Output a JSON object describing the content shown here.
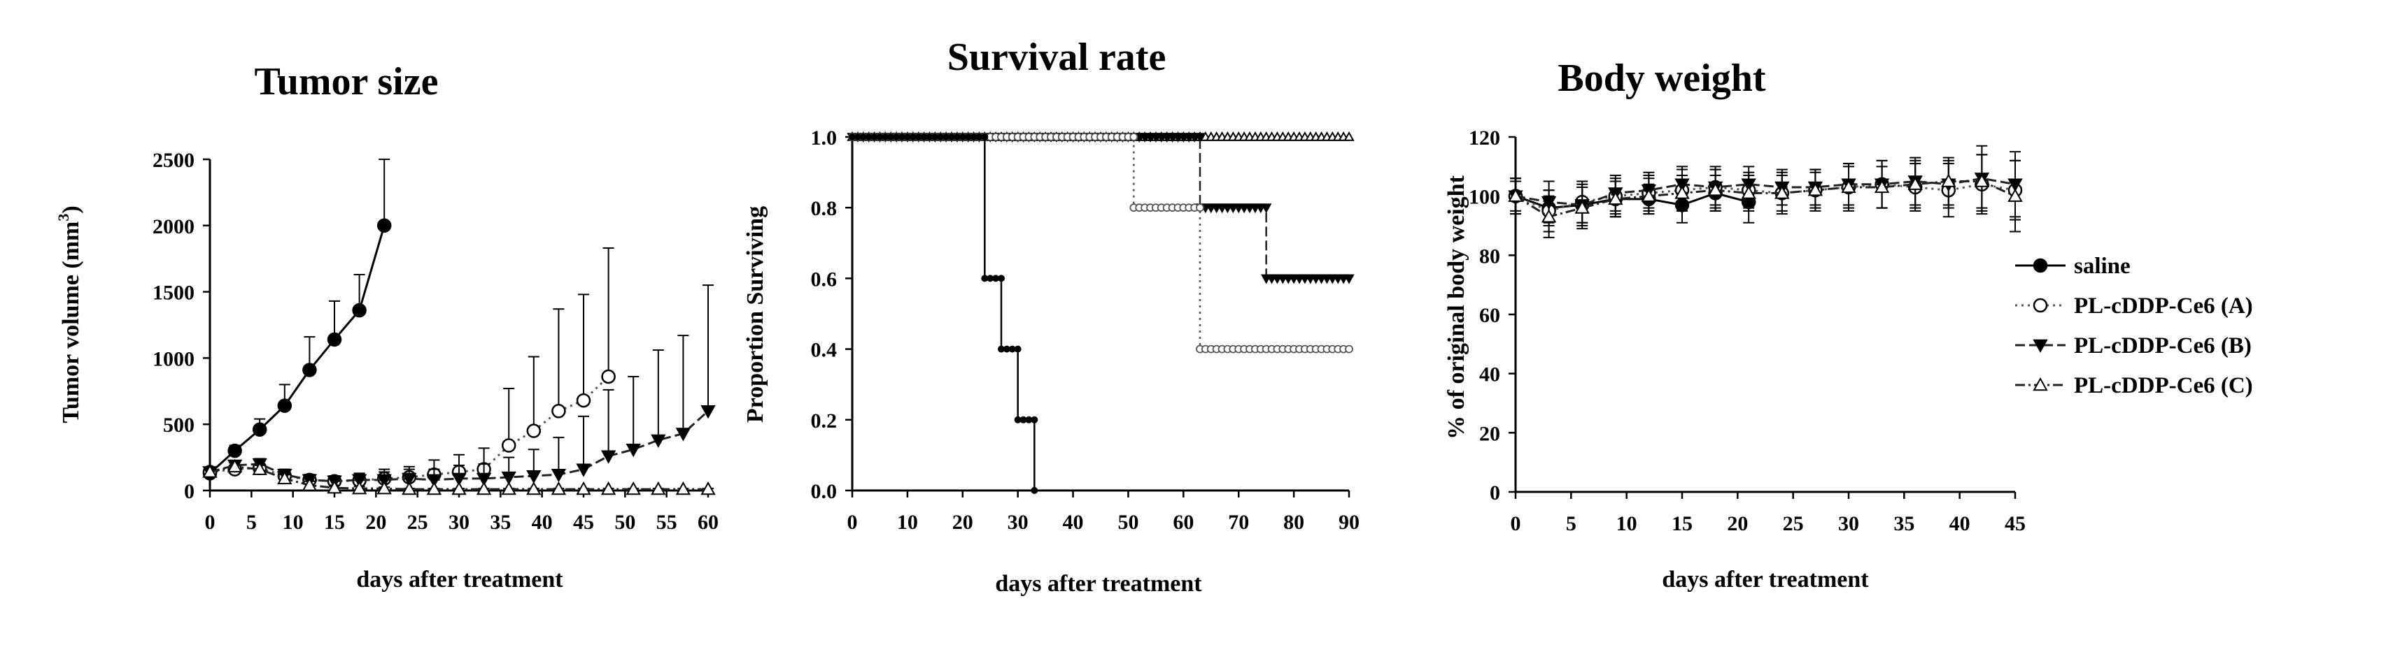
{
  "chart_data": [
    {
      "type": "line",
      "title": "Tumor size",
      "xlabel": "days after treatment",
      "ylabel": "Tumor volume (mm",
      "ylabel_sup": "3",
      "ylabel_close": ")",
      "xlim": [
        0,
        60
      ],
      "ylim": [
        0,
        2500
      ],
      "xticks": [
        0,
        5,
        10,
        15,
        20,
        25,
        30,
        35,
        40,
        45,
        50,
        55,
        60
      ],
      "yticks": [
        0,
        500,
        1000,
        1500,
        2000,
        2500
      ],
      "series": [
        {
          "name": "saline",
          "x": [
            0,
            3,
            6,
            9,
            12,
            15,
            18,
            21
          ],
          "y": [
            130,
            300,
            460,
            640,
            910,
            1140,
            1360,
            2000
          ],
          "err": [
            20,
            40,
            80,
            160,
            250,
            290,
            270,
            500
          ]
        },
        {
          "name": "PL-cDDP-Ce6 (A)",
          "x": [
            0,
            3,
            6,
            9,
            12,
            15,
            18,
            21,
            24,
            27,
            30,
            33,
            36,
            39,
            42,
            45,
            48
          ],
          "y": [
            140,
            160,
            170,
            110,
            80,
            70,
            75,
            90,
            100,
            120,
            140,
            160,
            340,
            450,
            600,
            680,
            860
          ],
          "err": [
            20,
            30,
            30,
            30,
            40,
            40,
            50,
            70,
            80,
            110,
            130,
            160,
            430,
            560,
            770,
            800,
            970
          ]
        },
        {
          "name": "PL-cDDP-Ce6 (B)",
          "x": [
            0,
            3,
            6,
            9,
            12,
            15,
            18,
            21,
            24,
            27,
            30,
            33,
            36,
            39,
            42,
            45,
            48,
            51,
            54,
            57,
            60
          ],
          "y": [
            140,
            190,
            200,
            120,
            80,
            70,
            80,
            80,
            90,
            80,
            90,
            90,
            100,
            110,
            120,
            160,
            260,
            310,
            380,
            430,
            600
          ],
          "err": [
            20,
            30,
            40,
            40,
            40,
            40,
            50,
            60,
            70,
            80,
            100,
            110,
            150,
            200,
            280,
            400,
            500,
            550,
            680,
            740,
            950
          ]
        },
        {
          "name": "PL-cDDP-Ce6 (C)",
          "x": [
            0,
            3,
            6,
            9,
            12,
            15,
            18,
            21,
            24,
            27,
            30,
            33,
            36,
            39,
            42,
            45,
            48,
            51,
            54,
            57,
            60
          ],
          "y": [
            140,
            180,
            160,
            90,
            40,
            20,
            15,
            15,
            10,
            10,
            10,
            10,
            10,
            10,
            10,
            10,
            10,
            10,
            10,
            10,
            10
          ],
          "err": [
            20,
            30,
            30,
            30,
            30,
            20,
            15,
            10,
            5,
            5,
            5,
            5,
            5,
            5,
            5,
            5,
            5,
            5,
            5,
            5,
            5
          ]
        }
      ]
    },
    {
      "type": "line",
      "title": "Survival rate",
      "xlabel": "days after treatment",
      "ylabel": "Proportion Surviving",
      "xlim": [
        0,
        90
      ],
      "ylim": [
        0,
        1
      ],
      "xticks": [
        0,
        10,
        20,
        30,
        40,
        50,
        60,
        70,
        80,
        90
      ],
      "yticks": [
        "0.0",
        "0.2",
        "0.4",
        "0.6",
        "0.8",
        "1.0"
      ],
      "series": [
        {
          "name": "saline",
          "steps": [
            [
              0,
              1.0
            ],
            [
              24,
              0.6
            ],
            [
              27,
              0.4
            ],
            [
              30,
              0.2
            ],
            [
              33,
              0.0
            ]
          ],
          "end": 33
        },
        {
          "name": "PL-cDDP-Ce6 (A)",
          "steps": [
            [
              0,
              1.0
            ],
            [
              51,
              0.8
            ],
            [
              63,
              0.4
            ]
          ],
          "end": 90
        },
        {
          "name": "PL-cDDP-Ce6 (B)",
          "steps": [
            [
              0,
              1.0
            ],
            [
              63,
              0.8
            ],
            [
              75,
              0.6
            ]
          ],
          "end": 90
        },
        {
          "name": "PL-cDDP-Ce6 (C)",
          "steps": [
            [
              0,
              1.0
            ]
          ],
          "end": 90
        }
      ]
    },
    {
      "type": "line",
      "title": "Body weight",
      "xlabel": "days after treatment",
      "ylabel": "% of original body weight",
      "xlim": [
        0,
        45
      ],
      "ylim": [
        0,
        120
      ],
      "xticks": [
        0,
        5,
        10,
        15,
        20,
        25,
        30,
        35,
        40,
        45
      ],
      "yticks": [
        0,
        20,
        40,
        60,
        80,
        100,
        120
      ],
      "series": [
        {
          "name": "saline",
          "x": [
            0,
            3,
            6,
            9,
            12,
            15,
            18,
            21
          ],
          "y": [
            100,
            96,
            97,
            99,
            99,
            97,
            101,
            98
          ],
          "err": [
            5,
            6,
            6,
            6,
            5,
            6,
            6,
            7
          ]
        },
        {
          "name": "PL-cDDP-Ce6 (A)",
          "x": [
            0,
            3,
            6,
            9,
            12,
            15,
            18,
            21,
            24,
            27,
            30,
            33,
            36,
            39,
            42,
            45
          ],
          "y": [
            100,
            95,
            98,
            100,
            101,
            102,
            103,
            102,
            101,
            102,
            103,
            104,
            103,
            102,
            104,
            102
          ],
          "err": [
            6,
            7,
            7,
            6,
            6,
            7,
            7,
            6,
            7,
            7,
            8,
            8,
            8,
            9,
            10,
            10
          ]
        },
        {
          "name": "PL-cDDP-Ce6 (B)",
          "x": [
            0,
            3,
            6,
            9,
            12,
            15,
            18,
            21,
            24,
            27,
            30,
            33,
            36,
            39,
            42,
            45
          ],
          "y": [
            100,
            98,
            97,
            101,
            102,
            104,
            103,
            104,
            103,
            103,
            104,
            104,
            105,
            104,
            106,
            104
          ],
          "err": [
            6,
            7,
            7,
            6,
            6,
            6,
            6,
            6,
            6,
            6,
            7,
            8,
            8,
            8,
            11,
            11
          ]
        },
        {
          "name": "PL-cDDP-Ce6 (C)",
          "x": [
            0,
            3,
            6,
            9,
            12,
            15,
            18,
            21,
            24,
            27,
            30,
            33,
            36,
            39,
            42,
            45
          ],
          "y": [
            100,
            93,
            96,
            99,
            100,
            101,
            102,
            101,
            101,
            102,
            103,
            103,
            104,
            105,
            105,
            100
          ],
          "err": [
            6,
            7,
            7,
            6,
            6,
            6,
            7,
            6,
            6,
            6,
            7,
            7,
            8,
            8,
            9,
            12
          ]
        }
      ]
    }
  ],
  "legend": {
    "placement": "right",
    "entries": [
      "saline",
      "PL-cDDP-Ce6 (A)",
      "PL-cDDP-Ce6 (B)",
      "PL-cDDP-Ce6 (C)"
    ]
  }
}
